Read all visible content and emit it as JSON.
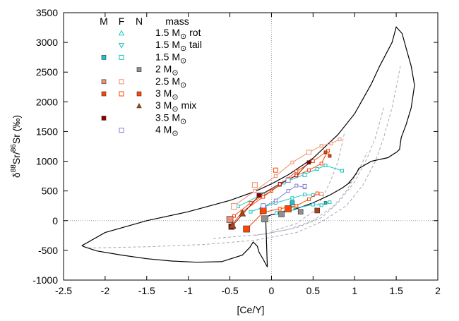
{
  "chart_data": {
    "type": "scatter",
    "xlabel": "[Ce/Y]",
    "ylabel_parts": {
      "delta": "δ",
      "sup1": "88",
      "mid": "Sr/",
      "sup2": "86",
      "end": "Sr (‰)"
    },
    "xlim": [
      -2.5,
      2
    ],
    "ylim": [
      -1000,
      3500
    ],
    "xticks": [
      -2.5,
      -2,
      -1.5,
      -1,
      -0.5,
      0,
      0.5,
      1,
      1.5,
      2
    ],
    "yticks": [
      -1000,
      -500,
      0,
      500,
      1000,
      1500,
      2000,
      2500,
      3000,
      3500
    ],
    "grid": false,
    "zero_lines": true,
    "legend": {
      "placement": "top-left",
      "headers": [
        "M",
        "F",
        "N",
        "mass"
      ],
      "entries": [
        {
          "label": "1.5 M",
          "suffix": " rot",
          "color": "#19c6c6",
          "M": null,
          "F": "triangle-up-open",
          "N": null
        },
        {
          "label": "1.5 M",
          "suffix": " tail",
          "color": "#19c6c6",
          "M": null,
          "F": "triangle-down-open",
          "N": null
        },
        {
          "label": "1.5 M",
          "suffix": "",
          "color": "#19c6c6",
          "M": "square-filled",
          "F": "square-open",
          "N": null
        },
        {
          "label": "2 M",
          "suffix": "",
          "color": "#909090",
          "M": null,
          "F": null,
          "N": "square-filled"
        },
        {
          "label": "2.5 M",
          "suffix": "",
          "color": "#ee9070",
          "M": "square-filled",
          "F": "square-open",
          "N": null
        },
        {
          "label": "3 M",
          "suffix": "",
          "color": "#ff4500",
          "M": "square-filled",
          "F": "square-open",
          "N": "square-filled"
        },
        {
          "label": "3 M",
          "suffix": " mix",
          "color": "#b04010",
          "M": null,
          "F": null,
          "N": "triangle-filled"
        },
        {
          "label": "3.5 M",
          "suffix": "",
          "color": "#8b0000",
          "M": "square-filled",
          "F": null,
          "N": null
        },
        {
          "label": "4 M",
          "suffix": "",
          "color": "#8080d0",
          "M": null,
          "F": "square-open",
          "N": null
        }
      ]
    },
    "envelope": [
      [
        -2.28,
        -420
      ],
      [
        -2.0,
        -200
      ],
      [
        -1.5,
        0
      ],
      [
        -1.0,
        150
      ],
      [
        -0.5,
        340
      ],
      [
        -0.2,
        490
      ],
      [
        0.0,
        620
      ],
      [
        0.2,
        770
      ],
      [
        0.5,
        1050
      ],
      [
        0.8,
        1450
      ],
      [
        1.0,
        1800
      ],
      [
        1.2,
        2300
      ],
      [
        1.3,
        2600
      ],
      [
        1.45,
        3000
      ],
      [
        1.5,
        3260
      ],
      [
        1.57,
        3150
      ],
      [
        1.62,
        2900
      ],
      [
        1.68,
        2600
      ],
      [
        1.72,
        2280
      ],
      [
        1.68,
        1900
      ],
      [
        1.62,
        1620
      ],
      [
        1.56,
        1400
      ],
      [
        1.54,
        1200
      ],
      [
        1.51,
        1160
      ],
      [
        1.4,
        1060
      ],
      [
        1.2,
        1000
      ],
      [
        1.05,
        880
      ],
      [
        1.03,
        820
      ],
      [
        0.98,
        720
      ],
      [
        0.92,
        620
      ],
      [
        0.95,
        650
      ],
      [
        0.85,
        550
      ],
      [
        0.7,
        430
      ],
      [
        0.5,
        300
      ],
      [
        0.3,
        200
      ],
      [
        0.1,
        130
      ],
      [
        0.0,
        100
      ],
      [
        -0.07,
        60
      ],
      [
        -0.05,
        -780
      ],
      [
        -0.1,
        -650
      ],
      [
        -0.15,
        -530
      ],
      [
        -0.17,
        -430
      ],
      [
        -0.22,
        -360
      ],
      [
        -0.26,
        -450
      ],
      [
        -0.35,
        -580
      ],
      [
        -0.6,
        -690
      ],
      [
        -0.9,
        -700
      ],
      [
        -1.2,
        -680
      ],
      [
        -1.5,
        -640
      ],
      [
        -1.8,
        -580
      ],
      [
        -2.1,
        -510
      ],
      [
        -2.25,
        -440
      ],
      [
        -2.28,
        -420
      ]
    ],
    "dashed_curves": [
      [
        [
          -2.2,
          -460
        ],
        [
          -1.5,
          -440
        ],
        [
          -0.8,
          -400
        ],
        [
          -0.2,
          -330
        ],
        [
          0.3,
          -200
        ],
        [
          0.6,
          -20
        ],
        [
          0.9,
          250
        ],
        [
          1.1,
          600
        ],
        [
          1.25,
          1000
        ],
        [
          1.35,
          1400
        ],
        [
          1.45,
          1900
        ],
        [
          1.55,
          2600
        ]
      ],
      [
        [
          -0.7,
          -300
        ],
        [
          -0.1,
          -230
        ],
        [
          0.3,
          -120
        ],
        [
          0.6,
          50
        ],
        [
          0.8,
          300
        ],
        [
          1.0,
          650
        ],
        [
          1.15,
          1050
        ],
        [
          1.25,
          1400
        ],
        [
          1.35,
          1900
        ]
      ],
      [
        [
          -0.2,
          -250
        ],
        [
          0.2,
          -150
        ],
        [
          0.5,
          0
        ],
        [
          0.75,
          250
        ],
        [
          0.9,
          500
        ],
        [
          1.05,
          850
        ],
        [
          1.15,
          1150
        ]
      ],
      [
        [
          0.0,
          -180
        ],
        [
          0.3,
          -50
        ],
        [
          0.5,
          150
        ],
        [
          0.62,
          400
        ],
        [
          0.72,
          700
        ],
        [
          0.8,
          1000
        ],
        [
          0.85,
          1300
        ],
        [
          0.88,
          1500
        ]
      ]
    ],
    "series": [
      {
        "color": "#19c6c6",
        "points": [
          [
            0.06,
            130
          ],
          [
            0.25,
            200
          ],
          [
            0.5,
            270
          ],
          [
            0.6,
            260
          ],
          [
            0.7,
            310
          ]
        ]
      },
      {
        "color": "#19c6c6",
        "points": [
          [
            -0.4,
            240
          ],
          [
            -0.1,
            450
          ],
          [
            0.15,
            640
          ],
          [
            0.4,
            780
          ],
          [
            0.55,
            870
          ],
          [
            0.65,
            930
          ],
          [
            0.85,
            840
          ]
        ]
      },
      {
        "color": "#19c6c6",
        "points": [
          [
            -0.25,
            150
          ],
          [
            0.05,
            300
          ],
          [
            0.25,
            380
          ],
          [
            0.4,
            440
          ],
          [
            0.5,
            430
          ],
          [
            0.6,
            450
          ]
        ]
      },
      {
        "color": "#ee9070",
        "points": [
          [
            -0.45,
            250
          ],
          [
            -0.2,
            500
          ],
          [
            0.05,
            750
          ],
          [
            0.25,
            980
          ],
          [
            0.45,
            1150
          ],
          [
            0.6,
            1260
          ],
          [
            0.72,
            1300
          ],
          [
            0.82,
            1370
          ]
        ]
      },
      {
        "color": "#ff4500",
        "points": [
          [
            -0.45,
            80
          ],
          [
            -0.25,
            300
          ],
          [
            0.0,
            500
          ],
          [
            0.2,
            700
          ],
          [
            0.45,
            850
          ],
          [
            0.6,
            960
          ],
          [
            0.68,
            1180
          ],
          [
            0.7,
            1090
          ]
        ]
      },
      {
        "color": "#ff4500",
        "points": [
          [
            -0.48,
            -80
          ],
          [
            -0.35,
            150
          ],
          [
            -0.1,
            400
          ],
          [
            0.1,
            600
          ],
          [
            0.3,
            830
          ],
          [
            0.5,
            1000
          ],
          [
            0.65,
            1150
          ]
        ]
      },
      {
        "color": "#ff4500",
        "points": [
          [
            -0.3,
            -140
          ],
          [
            -0.1,
            140
          ],
          [
            0.1,
            200
          ],
          [
            0.3,
            250
          ],
          [
            0.45,
            360
          ],
          [
            0.55,
            460
          ]
        ]
      },
      {
        "color": "#8b0000",
        "points": [
          [
            -0.48,
            -100
          ],
          [
            -0.15,
            420
          ],
          [
            0.1,
            620
          ],
          [
            0.3,
            760
          ],
          [
            0.45,
            980
          ]
        ]
      },
      {
        "color": "#8080d0",
        "points": [
          [
            -0.1,
            230
          ],
          [
            0.05,
            340
          ],
          [
            0.2,
            500
          ],
          [
            0.3,
            590
          ],
          [
            0.4,
            560
          ]
        ]
      }
    ],
    "markers": [
      {
        "x": -0.5,
        "y": 20,
        "shape": "square",
        "color": "#ee9070",
        "fill": true,
        "size": 9
      },
      {
        "x": -0.48,
        "y": -100,
        "shape": "square",
        "color": "#8b0000",
        "fill": true,
        "size": 8
      },
      {
        "x": -0.47,
        "y": -80,
        "shape": "triangle",
        "color": "#b04010",
        "fill": true,
        "size": 9
      },
      {
        "x": -0.35,
        "y": 120,
        "shape": "triangle",
        "color": "#b04010",
        "fill": true,
        "size": 8
      },
      {
        "x": -0.3,
        "y": -140,
        "shape": "square",
        "color": "#ff4500",
        "fill": true,
        "size": 9
      },
      {
        "x": -0.08,
        "y": 30,
        "shape": "square",
        "color": "#909090",
        "fill": true,
        "size": 9
      },
      {
        "x": -0.1,
        "y": 170,
        "shape": "square",
        "color": "#ff4500",
        "fill": true,
        "size": 9
      },
      {
        "x": 0.12,
        "y": 110,
        "shape": "square",
        "color": "#909090",
        "fill": true,
        "size": 8
      },
      {
        "x": 0.2,
        "y": 200,
        "shape": "square",
        "color": "#ff4500",
        "fill": true,
        "size": 9
      },
      {
        "x": 0.35,
        "y": 150,
        "shape": "square",
        "color": "#909090",
        "fill": true,
        "size": 7
      },
      {
        "x": 0.55,
        "y": 170,
        "shape": "square",
        "color": "#b04010",
        "fill": true,
        "size": 7
      },
      {
        "x": 0.25,
        "y": 300,
        "shape": "square",
        "color": "#19c6c6",
        "fill": true,
        "size": 6
      },
      {
        "x": -0.45,
        "y": 240,
        "shape": "square",
        "color": "#ee9070",
        "fill": false,
        "size": 8
      },
      {
        "x": -0.2,
        "y": 600,
        "shape": "square",
        "color": "#ee9070",
        "fill": false,
        "size": 7
      },
      {
        "x": 0.45,
        "y": 1150,
        "shape": "square",
        "color": "#ee9070",
        "fill": false,
        "size": 6
      },
      {
        "x": 0.05,
        "y": 850,
        "shape": "square",
        "color": "#ff4500",
        "fill": false,
        "size": 6
      },
      {
        "x": 0.45,
        "y": 980,
        "shape": "square",
        "color": "#8b0000",
        "fill": true,
        "size": 5
      },
      {
        "x": -0.15,
        "y": 430,
        "shape": "square",
        "color": "#8b0000",
        "fill": true,
        "size": 6
      },
      {
        "x": 0.2,
        "y": 680,
        "shape": "square",
        "color": "#8080d0",
        "fill": false,
        "size": 6
      },
      {
        "x": -0.1,
        "y": 250,
        "shape": "square",
        "color": "#8080d0",
        "fill": false,
        "size": 6
      },
      {
        "x": 0.4,
        "y": 580,
        "shape": "square",
        "color": "#8080d0",
        "fill": false,
        "size": 5
      },
      {
        "x": 0.6,
        "y": 450,
        "shape": "square",
        "color": "#ee9070",
        "fill": false,
        "size": 5
      },
      {
        "x": 0.4,
        "y": 770,
        "shape": "square",
        "color": "#19c6c6",
        "fill": false,
        "size": 5
      },
      {
        "x": 0.65,
        "y": 300,
        "shape": "square",
        "color": "#19c6c6",
        "fill": true,
        "size": 4
      },
      {
        "x": 0.7,
        "y": 1090,
        "shape": "square",
        "color": "#ff4500",
        "fill": true,
        "size": 4
      },
      {
        "x": 0.65,
        "y": 1150,
        "shape": "square",
        "color": "#ff4500",
        "fill": true,
        "size": 4
      }
    ]
  }
}
